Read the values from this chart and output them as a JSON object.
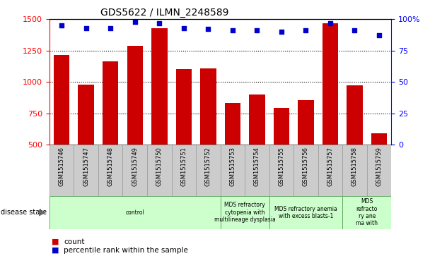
{
  "title": "GDS5622 / ILMN_2248589",
  "samples": [
    "GSM1515746",
    "GSM1515747",
    "GSM1515748",
    "GSM1515749",
    "GSM1515750",
    "GSM1515751",
    "GSM1515752",
    "GSM1515753",
    "GSM1515754",
    "GSM1515755",
    "GSM1515756",
    "GSM1515757",
    "GSM1515758",
    "GSM1515759"
  ],
  "counts": [
    1215,
    980,
    1165,
    1285,
    1430,
    1100,
    1110,
    835,
    900,
    795,
    855,
    1470,
    970,
    590
  ],
  "percentile_ranks": [
    95,
    93,
    93,
    98,
    97,
    93,
    92,
    91,
    91,
    90,
    91,
    97,
    91,
    87
  ],
  "bar_color": "#cc0000",
  "dot_color": "#0000cc",
  "ylim_left": [
    500,
    1500
  ],
  "ylim_right": [
    0,
    100
  ],
  "yticks_left": [
    500,
    750,
    1000,
    1250,
    1500
  ],
  "yticks_right": [
    0,
    25,
    50,
    75,
    100
  ],
  "right_tick_labels": [
    "0",
    "25",
    "50",
    "75",
    "100%"
  ],
  "disease_groups": [
    {
      "label": "control",
      "start": 0,
      "end": 7
    },
    {
      "label": "MDS refractory\ncytopenia with\nmultilineage dysplasia",
      "start": 7,
      "end": 9
    },
    {
      "label": "MDS refractory anemia\nwith excess blasts-1",
      "start": 9,
      "end": 12
    },
    {
      "label": "MDS\nrefracto\nry ane\nma with",
      "start": 12,
      "end": 14
    }
  ],
  "disease_state_label": "disease state",
  "legend_count_label": "count",
  "legend_pct_label": "percentile rank within the sample",
  "tick_bg_color": "#cccccc",
  "disease_bg_color": "#ccffcc",
  "disease_border_color": "#66aa66"
}
